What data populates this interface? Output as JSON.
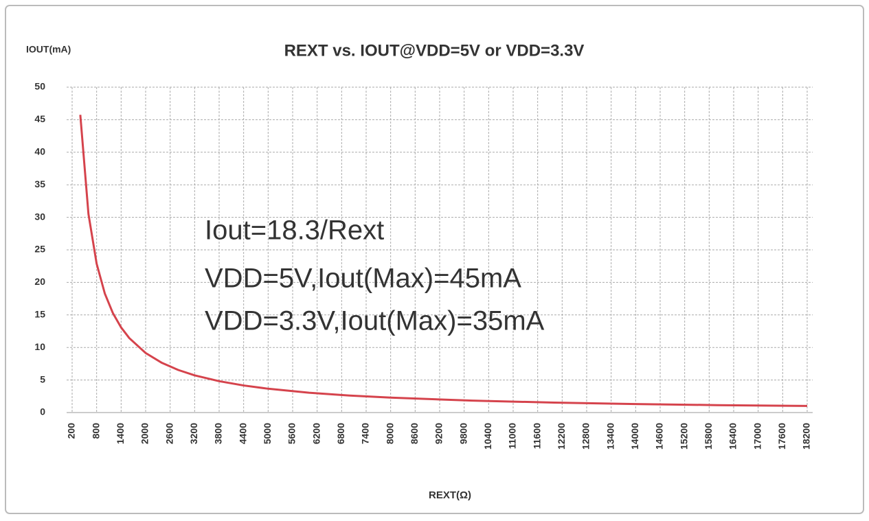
{
  "chart_data": {
    "type": "line",
    "title": "REXT vs. IOUT@VDD=5V or VDD=3.3V",
    "y_label": "IOUT(mA)",
    "x_label": "REXT(Ω)",
    "annotations": [
      "Iout=18.3/Rext",
      "VDD=5V,Iout(Max)=45mA",
      "VDD=3.3V,Iout(Max)=35mA"
    ],
    "x": [
      400,
      600,
      800,
      1000,
      1200,
      1400,
      1600,
      2000,
      2400,
      2800,
      3200,
      3800,
      4400,
      5000,
      6000,
      7000,
      8000,
      10000,
      12000,
      14000,
      16000,
      18200
    ],
    "series": [
      {
        "color": "#d5434c",
        "values": [
          45.75,
          30.5,
          22.88,
          18.3,
          15.25,
          13.07,
          11.44,
          9.15,
          7.63,
          6.54,
          5.72,
          4.82,
          4.16,
          3.66,
          3.05,
          2.61,
          2.29,
          1.83,
          1.53,
          1.31,
          1.14,
          1.01
        ]
      }
    ],
    "xlim": [
      200,
      18200
    ],
    "xticks": [
      200,
      800,
      1400,
      2000,
      2600,
      3200,
      3800,
      4400,
      5000,
      5600,
      6200,
      6800,
      7400,
      8000,
      8600,
      9200,
      9800,
      10400,
      11000,
      11600,
      12200,
      12800,
      13400,
      14000,
      14600,
      15200,
      15800,
      16400,
      17000,
      17600,
      18200
    ],
    "ylim": [
      0,
      50
    ],
    "yticks": [
      0,
      5,
      10,
      15,
      20,
      25,
      30,
      35,
      40,
      45,
      50
    ],
    "grid": true
  }
}
